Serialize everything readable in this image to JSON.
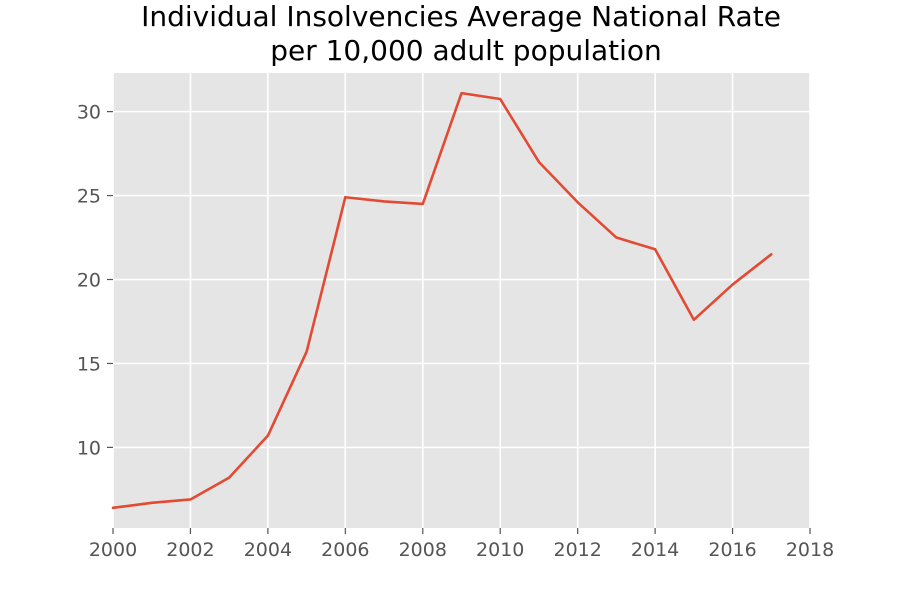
{
  "chart_data": {
    "type": "line",
    "title": "Individual Insolvencies Average National Rate",
    "subtitle": "per 10,000 adult population",
    "xlabel": "",
    "ylabel": "",
    "xlim": [
      2000,
      2018
    ],
    "ylim": [
      5.2,
      32.3
    ],
    "x_ticks": [
      2000,
      2002,
      2004,
      2006,
      2008,
      2010,
      2012,
      2014,
      2016,
      2018
    ],
    "y_ticks": [
      10,
      15,
      20,
      25,
      30
    ],
    "grid": true,
    "legend": "none",
    "series": [
      {
        "color": "#E24A33",
        "x": [
          2000,
          2001,
          2002,
          2003,
          2004,
          2005,
          2006,
          2007,
          2008,
          2009,
          2010,
          2011,
          2012,
          2013,
          2014,
          2015,
          2016,
          2017
        ],
        "y": [
          6.4,
          6.7,
          6.9,
          8.2,
          10.7,
          15.7,
          24.9,
          24.65,
          24.5,
          31.1,
          30.75,
          27.0,
          24.6,
          22.5,
          21.8,
          17.6,
          19.7,
          21.5
        ]
      }
    ]
  },
  "style": {
    "plot_background": "#E5E5E5",
    "grid_color": "#FFFFFF",
    "tick_text_color": "#555555",
    "title_color": "#000000"
  }
}
